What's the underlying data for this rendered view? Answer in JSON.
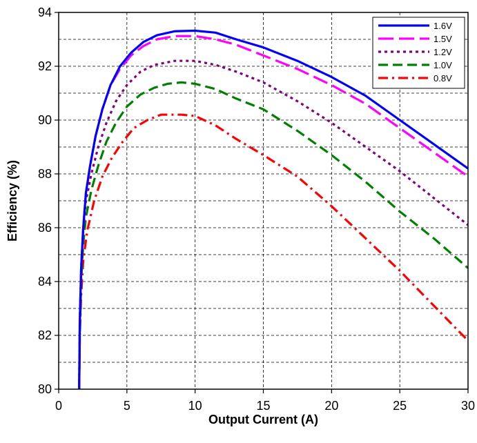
{
  "chart_data": {
    "type": "line",
    "title": "",
    "xlabel": "Output Current (A)",
    "ylabel": "Efficiency (%)",
    "xlim": [
      0,
      30
    ],
    "ylim": [
      80,
      94
    ],
    "x_ticks": [
      0,
      5,
      10,
      15,
      20,
      25,
      30
    ],
    "y_ticks": [
      80,
      82,
      84,
      86,
      88,
      90,
      92,
      94
    ],
    "grid": "dashed major and minor horizontal, dashed vertical",
    "legend_position": "top-right",
    "series": [
      {
        "name": "1.6V",
        "color": "#0000ff",
        "dash": "solid",
        "points": [
          [
            1.5,
            80.0
          ],
          [
            1.55,
            82.5
          ],
          [
            1.65,
            84.5
          ],
          [
            1.8,
            86.0
          ],
          [
            2.0,
            87.3
          ],
          [
            2.3,
            88.3
          ],
          [
            2.7,
            89.4
          ],
          [
            3.2,
            90.4
          ],
          [
            3.8,
            91.3
          ],
          [
            4.5,
            92.0
          ],
          [
            5.3,
            92.5
          ],
          [
            6.2,
            92.9
          ],
          [
            7.2,
            93.15
          ],
          [
            8.5,
            93.3
          ],
          [
            10.0,
            93.32
          ],
          [
            11.5,
            93.25
          ],
          [
            13.0,
            93.0
          ],
          [
            15.0,
            92.7
          ],
          [
            17.5,
            92.2
          ],
          [
            20.0,
            91.6
          ],
          [
            22.5,
            90.9
          ],
          [
            25.0,
            90.0
          ],
          [
            27.5,
            89.1
          ],
          [
            30.0,
            88.2
          ]
        ]
      },
      {
        "name": "1.5V",
        "color": "#ff00ff",
        "dash": "long-dash",
        "points": [
          [
            1.5,
            80.0
          ],
          [
            1.55,
            82.5
          ],
          [
            1.65,
            84.5
          ],
          [
            1.8,
            86.0
          ],
          [
            2.0,
            87.3
          ],
          [
            2.3,
            88.3
          ],
          [
            2.7,
            89.4
          ],
          [
            3.2,
            90.4
          ],
          [
            3.8,
            91.3
          ],
          [
            4.5,
            91.9
          ],
          [
            5.3,
            92.4
          ],
          [
            6.2,
            92.75
          ],
          [
            7.2,
            93.0
          ],
          [
            8.5,
            93.12
          ],
          [
            10.0,
            93.12
          ],
          [
            11.5,
            93.0
          ],
          [
            13.0,
            92.8
          ],
          [
            15.0,
            92.4
          ],
          [
            17.5,
            91.9
          ],
          [
            20.0,
            91.3
          ],
          [
            22.5,
            90.6
          ],
          [
            25.0,
            89.7
          ],
          [
            27.5,
            88.8
          ],
          [
            30.0,
            87.9
          ]
        ]
      },
      {
        "name": "1.2V",
        "color": "#800080",
        "dash": "dot",
        "points": [
          [
            1.5,
            80.0
          ],
          [
            1.55,
            82.5
          ],
          [
            1.65,
            84.5
          ],
          [
            1.8,
            85.9
          ],
          [
            2.0,
            87.0
          ],
          [
            2.4,
            88.0
          ],
          [
            2.9,
            89.0
          ],
          [
            3.5,
            89.9
          ],
          [
            4.2,
            90.7
          ],
          [
            5.0,
            91.3
          ],
          [
            6.0,
            91.8
          ],
          [
            7.0,
            92.05
          ],
          [
            8.5,
            92.2
          ],
          [
            10.0,
            92.2
          ],
          [
            11.5,
            92.05
          ],
          [
            13.0,
            91.8
          ],
          [
            15.0,
            91.4
          ],
          [
            17.5,
            90.7
          ],
          [
            20.0,
            89.9
          ],
          [
            22.5,
            89.0
          ],
          [
            25.0,
            88.1
          ],
          [
            27.5,
            87.1
          ],
          [
            30.0,
            86.1
          ]
        ]
      },
      {
        "name": "1.0V",
        "color": "#008000",
        "dash": "dash",
        "points": [
          [
            1.5,
            80.0
          ],
          [
            1.55,
            82.0
          ],
          [
            1.65,
            84.0
          ],
          [
            1.8,
            85.4
          ],
          [
            2.0,
            86.4
          ],
          [
            2.4,
            87.4
          ],
          [
            2.9,
            88.3
          ],
          [
            3.5,
            89.2
          ],
          [
            4.2,
            89.9
          ],
          [
            5.0,
            90.5
          ],
          [
            6.0,
            90.95
          ],
          [
            7.0,
            91.2
          ],
          [
            8.0,
            91.35
          ],
          [
            9.0,
            91.4
          ],
          [
            10.0,
            91.35
          ],
          [
            11.5,
            91.15
          ],
          [
            13.0,
            90.8
          ],
          [
            15.0,
            90.4
          ],
          [
            17.5,
            89.6
          ],
          [
            20.0,
            88.7
          ],
          [
            22.5,
            87.7
          ],
          [
            25.0,
            86.6
          ],
          [
            27.5,
            85.6
          ],
          [
            30.0,
            84.5
          ]
        ]
      },
      {
        "name": "0.8V",
        "color": "#ff0000",
        "dash": "dash-dot",
        "points": [
          [
            1.5,
            80.0
          ],
          [
            1.55,
            82.0
          ],
          [
            1.65,
            83.5
          ],
          [
            1.8,
            84.8
          ],
          [
            2.1,
            85.9
          ],
          [
            2.6,
            87.0
          ],
          [
            3.2,
            87.9
          ],
          [
            3.9,
            88.6
          ],
          [
            4.7,
            89.2
          ],
          [
            5.5,
            89.7
          ],
          [
            6.5,
            90.0
          ],
          [
            7.5,
            90.2
          ],
          [
            9.0,
            90.2
          ],
          [
            10.0,
            90.15
          ],
          [
            11.5,
            89.8
          ],
          [
            13.0,
            89.3
          ],
          [
            15.0,
            88.7
          ],
          [
            17.5,
            87.9
          ],
          [
            20.0,
            86.8
          ],
          [
            22.5,
            85.6
          ],
          [
            25.0,
            84.4
          ],
          [
            27.5,
            83.1
          ],
          [
            30.0,
            81.8
          ]
        ]
      }
    ]
  }
}
